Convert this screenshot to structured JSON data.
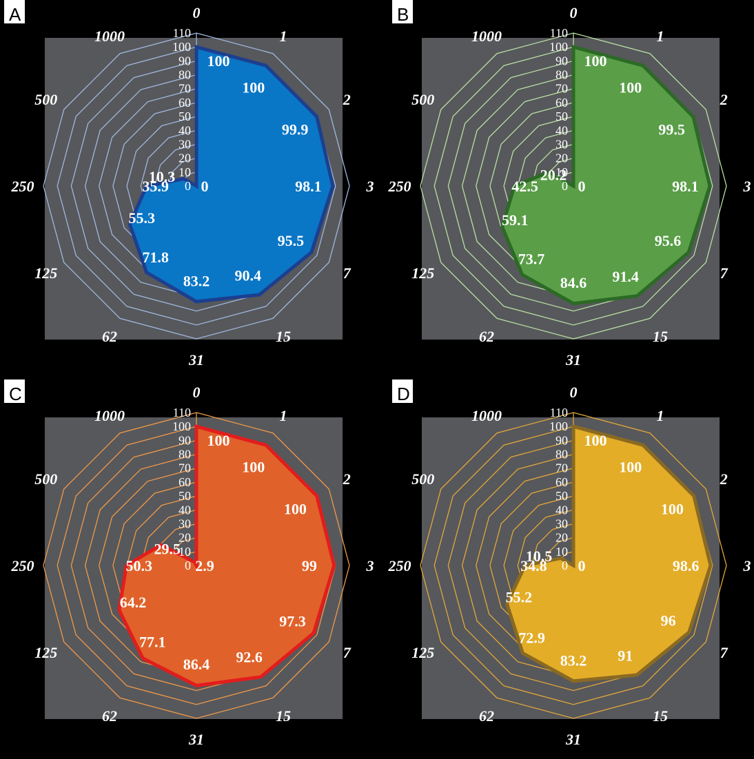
{
  "chart_data": [
    {
      "type": "radar",
      "panel_label": "A",
      "categories": [
        "0",
        "1",
        "2",
        "3",
        "7",
        "15",
        "31",
        "62",
        "125",
        "250",
        "500",
        "1000"
      ],
      "values": [
        100,
        100,
        99.9,
        98.1,
        95.5,
        90.4,
        83.2,
        71.8,
        55.3,
        35.9,
        10.3,
        0
      ],
      "value_labels": [
        "100",
        "100",
        "99.9",
        "98.1",
        "95.5",
        "90.4",
        "83.2",
        "71.8",
        "55.3",
        "35.9",
        "10.3",
        "0"
      ],
      "r_ticks": [
        "0",
        "10",
        "20",
        "30",
        "40",
        "50",
        "60",
        "70",
        "80",
        "90",
        "100",
        "110"
      ],
      "rlim": [
        0,
        110
      ],
      "colors": {
        "fill": "#0a76c6",
        "edge": "#1c3f8f",
        "grid": "#9fb8e0"
      }
    },
    {
      "type": "radar",
      "panel_label": "B",
      "categories": [
        "0",
        "1",
        "2",
        "3",
        "7",
        "15",
        "31",
        "62",
        "125",
        "250",
        "500",
        "1000"
      ],
      "values": [
        100,
        100,
        99.5,
        98.1,
        95.6,
        91.4,
        84.6,
        73.7,
        59.1,
        42.5,
        20.2,
        0
      ],
      "value_labels": [
        "100",
        "100",
        "99.5",
        "98.1",
        "95.6",
        "91.4",
        "84.6",
        "73.7",
        "59.1",
        "42.5",
        "20.2",
        "0"
      ],
      "r_ticks": [
        "0",
        "10",
        "20",
        "30",
        "40",
        "50",
        "60",
        "70",
        "80",
        "90",
        "100",
        "110"
      ],
      "rlim": [
        0,
        110
      ],
      "colors": {
        "fill": "#5a9e48",
        "edge": "#2c6a26",
        "grid": "#b8e0a4"
      }
    },
    {
      "type": "radar",
      "panel_label": "C",
      "categories": [
        "0",
        "1",
        "2",
        "3",
        "7",
        "15",
        "31",
        "62",
        "125",
        "250",
        "500",
        "1000"
      ],
      "values": [
        100,
        100,
        100,
        99,
        97.3,
        92.6,
        86.4,
        77.1,
        64.2,
        50.3,
        29.5,
        2.9
      ],
      "value_labels": [
        "100",
        "100",
        "100",
        "99",
        "97.3",
        "92.6",
        "86.4",
        "77.1",
        "64.2",
        "50.3",
        "29.5",
        "2.9"
      ],
      "r_ticks": [
        "0",
        "10",
        "20",
        "30",
        "40",
        "50",
        "60",
        "70",
        "80",
        "90",
        "100",
        "110"
      ],
      "rlim": [
        0,
        110
      ],
      "colors": {
        "fill": "#e0622a",
        "edge": "#e21d1d",
        "grid": "#f09a4a"
      }
    },
    {
      "type": "radar",
      "panel_label": "D",
      "categories": [
        "0",
        "1",
        "2",
        "3",
        "7",
        "15",
        "31",
        "62",
        "125",
        "250",
        "500",
        "1000"
      ],
      "values": [
        100,
        100,
        100,
        98.6,
        96,
        91,
        83.2,
        72.9,
        55.2,
        34.8,
        10.5,
        0
      ],
      "value_labels": [
        "100",
        "100",
        "100",
        "98.6",
        "96",
        "91",
        "83.2",
        "72.9",
        "55.2",
        "34.8",
        "10.5",
        "0"
      ],
      "r_ticks": [
        "0",
        "10",
        "20",
        "30",
        "40",
        "50",
        "60",
        "70",
        "80",
        "90",
        "100",
        "110"
      ],
      "rlim": [
        0,
        110
      ],
      "colors": {
        "fill": "#e3ad28",
        "edge": "#8a6a22",
        "grid": "#e3a83a"
      }
    }
  ]
}
